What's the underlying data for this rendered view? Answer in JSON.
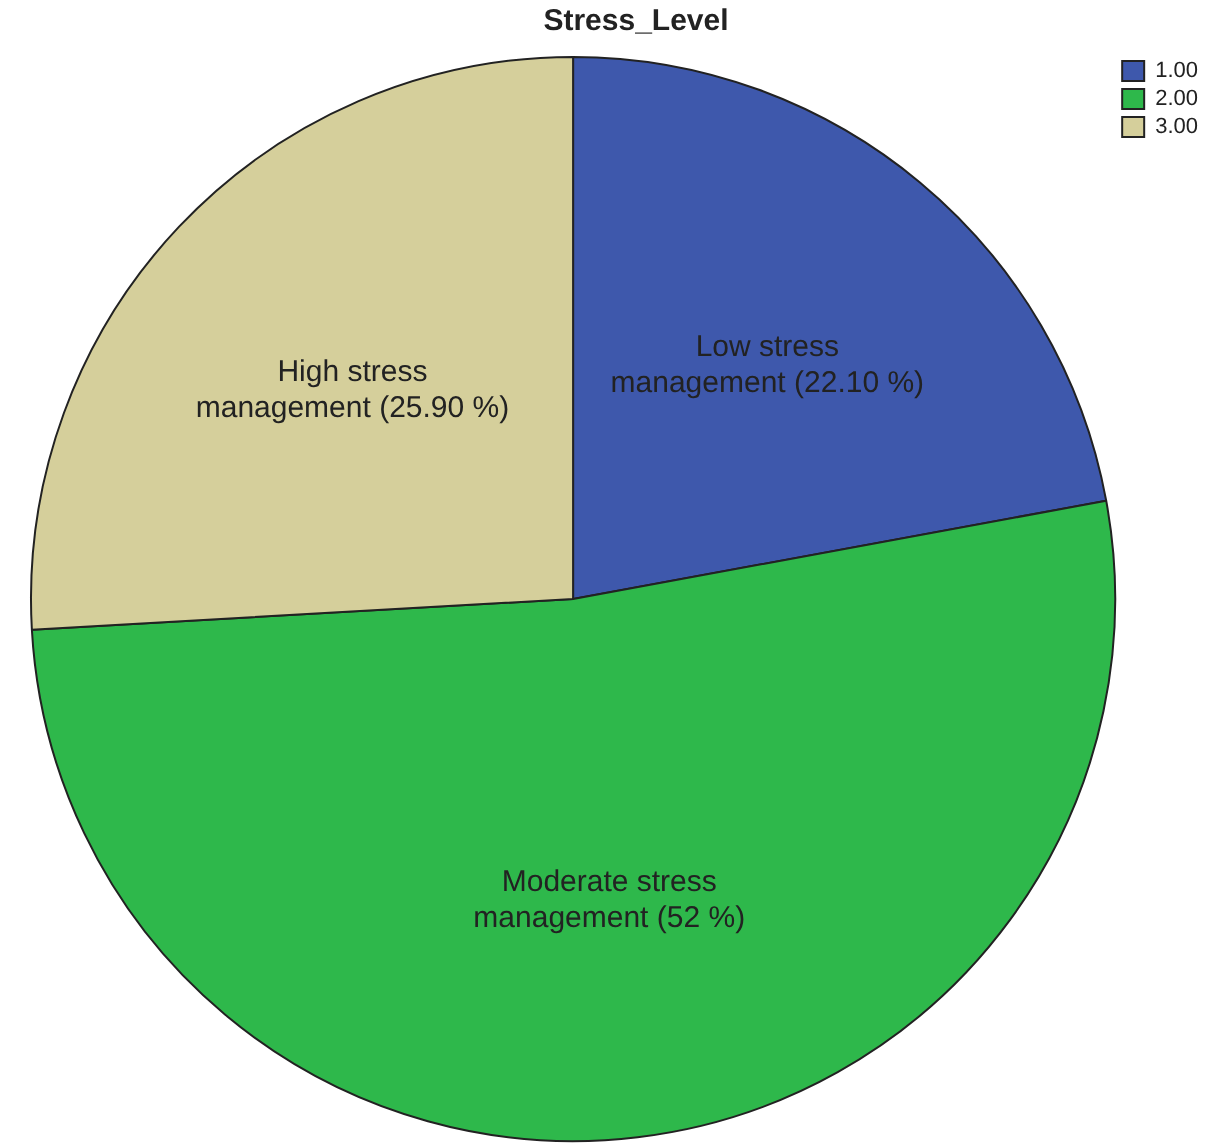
{
  "chart_data": {
    "type": "pie",
    "title": "Stress_Level",
    "categories": [
      "1.00",
      "2.00",
      "3.00"
    ],
    "values": [
      22.1,
      52,
      25.9
    ],
    "colors": [
      "#3e58ac",
      "#2eb84b",
      "#d5cf9b"
    ],
    "value_labels": [
      "Low stress\nmanagement (22.10 %)",
      "Moderate stress\nmanagement (52 %)",
      "High stress\nmanagement (25.90 %)"
    ],
    "legend": "top right"
  }
}
